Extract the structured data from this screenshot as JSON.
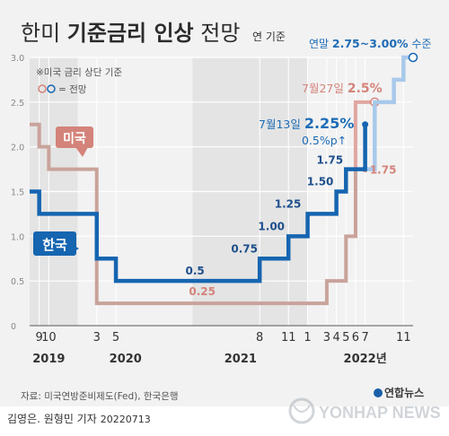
{
  "title": {
    "part1": "한미 ",
    "part2": "기준금리 인상",
    "part3": " 전망"
  },
  "unit_note": "연 기준",
  "legend": {
    "note1": "※미국 금리 상단 기준",
    "note2": "= 전망"
  },
  "colors": {
    "us": "#c9a39b",
    "us_text": "#d4837a",
    "us_proj": "#e0a7a1",
    "kr": "#1565b0",
    "kr_proj": "#a8c9ea",
    "kr_text": "#1d6cb6"
  },
  "source": "자료: 미국연방준비제도(Fed), 한국은행",
  "byline": {
    "author": "김영은. 원형민 기자",
    "date": "20220713"
  },
  "agency": {
    "logo_text": "연합뉴스",
    "watermark": "YONHAP NEWS"
  },
  "chart_data": {
    "type": "line",
    "step": true,
    "x_unit": "month",
    "xlim": [
      "2019-08",
      "2022-12"
    ],
    "ylim": [
      0,
      3.0
    ],
    "yticks": [
      "0",
      "0.5",
      "1.0",
      "1.5",
      "2.0",
      "2.5",
      "3.0"
    ],
    "month_ticks": [
      {
        "x": "2019-09",
        "label": "9"
      },
      {
        "x": "2019-10",
        "label": "10"
      },
      {
        "x": "2020-03",
        "label": "3"
      },
      {
        "x": "2020-05",
        "label": "5"
      },
      {
        "x": "2021-08",
        "label": "8"
      },
      {
        "x": "2021-11",
        "label": "11"
      },
      {
        "x": "2022-01",
        "label": "1"
      },
      {
        "x": "2022-03",
        "label": "3"
      },
      {
        "x": "2022-04",
        "label": "4"
      },
      {
        "x": "2022-05",
        "label": "5"
      },
      {
        "x": "2022-06",
        "label": "6"
      },
      {
        "x": "2022-07",
        "label": "7"
      },
      {
        "x": "2022-11",
        "label": "11"
      }
    ],
    "year_labels": [
      {
        "x": "2019-10",
        "label": "2019"
      },
      {
        "x": "2020-06",
        "label": "2020"
      },
      {
        "x": "2021-06",
        "label": "2021"
      },
      {
        "x": "2022-07",
        "label": "2022년"
      }
    ],
    "shaded_years": [
      {
        "start": "2019-08",
        "end": "2020-01"
      },
      {
        "start": "2021-01",
        "end": "2022-01"
      }
    ],
    "series": [
      {
        "name": "미국",
        "actual": [
          {
            "x": "2019-08",
            "y": 2.25
          },
          {
            "x": "2019-09",
            "y": 2.0
          },
          {
            "x": "2019-10",
            "y": 1.75
          },
          {
            "x": "2020-03",
            "y": 0.25
          },
          {
            "x": "2022-03",
            "y": 0.5
          },
          {
            "x": "2022-05",
            "y": 1.0
          },
          {
            "x": "2022-06",
            "y": 1.75
          }
        ],
        "actual_end": "2022-07",
        "projection": [
          {
            "x": "2022-07",
            "y": 2.5
          }
        ],
        "projection_end": "2022-08"
      },
      {
        "name": "한국",
        "actual": [
          {
            "x": "2019-08",
            "y": 1.5
          },
          {
            "x": "2019-09",
            "y": 1.25
          },
          {
            "x": "2020-03",
            "y": 0.75
          },
          {
            "x": "2020-05",
            "y": 0.5
          },
          {
            "x": "2021-08",
            "y": 0.75
          },
          {
            "x": "2021-11",
            "y": 1.0
          },
          {
            "x": "2022-01",
            "y": 1.25
          },
          {
            "x": "2022-04",
            "y": 1.5
          },
          {
            "x": "2022-05",
            "y": 1.75
          },
          {
            "x": "2022-07",
            "y": 2.25
          }
        ],
        "actual_end": "2022-07",
        "projection": [
          {
            "x": "2022-07",
            "y": 1.75
          },
          {
            "x": "2022-08",
            "y": 2.5
          },
          {
            "x": "2022-10",
            "y": 2.75
          },
          {
            "x": "2022-11",
            "y": 3.0
          }
        ],
        "projection_end": "2022-12"
      }
    ],
    "annotations": [
      {
        "text": "0.25",
        "x": "2021-02",
        "y": 0.25,
        "series": "us"
      },
      {
        "text": "0.5",
        "x": "2021-02",
        "y": 0.5,
        "series": "kr"
      },
      {
        "text": "0.75",
        "x": "2021-08",
        "y": 0.75,
        "series": "kr"
      },
      {
        "text": "1.00",
        "x": "2021-11",
        "y": 1.0,
        "series": "kr"
      },
      {
        "text": "1.25",
        "x": "2022-01",
        "y": 1.25,
        "series": "kr"
      },
      {
        "text": "1.50",
        "x": "2022-04",
        "y": 1.5,
        "series": "kr"
      },
      {
        "text": "1.75",
        "x": "2022-05",
        "y": 1.75,
        "series": "kr"
      },
      {
        "text": "1.75",
        "x": "2022-07",
        "y": 1.75,
        "series": "us"
      }
    ],
    "callouts": {
      "kr_jul": {
        "date": "7월13일",
        "value": "2.25%",
        "change": "0.5%p↑"
      },
      "us_jul": {
        "date": "7월27일",
        "value": "2.5%"
      },
      "kr_yearend": {
        "label": "연말",
        "value": "2.75~3.00%",
        "suffix": "수준"
      }
    }
  }
}
